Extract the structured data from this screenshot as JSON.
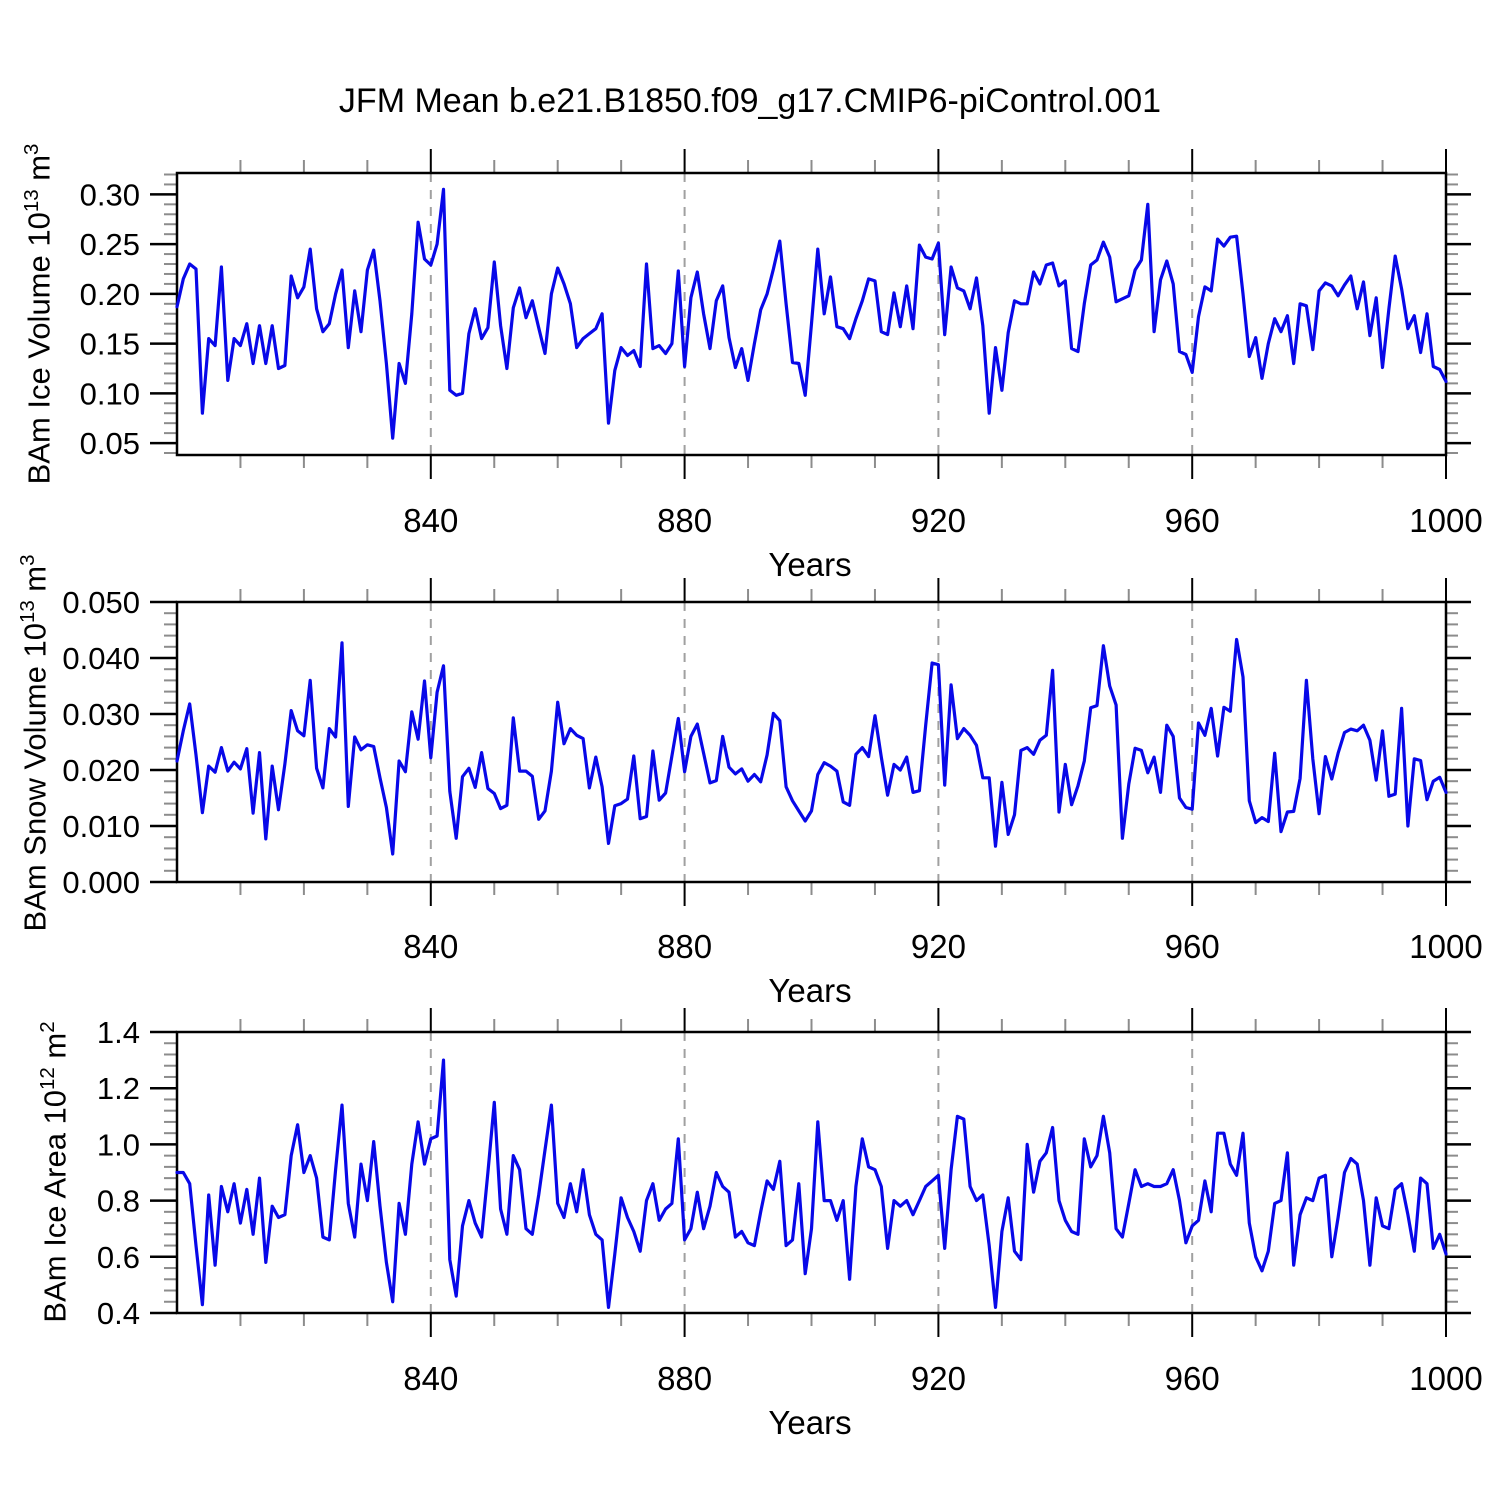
{
  "title": "JFM Mean b.e21.B1850.f09_g17.CMIP6-piControl.001",
  "colors": {
    "line": "#0808E8",
    "frame": "#000000",
    "major_tick": "#000000",
    "minor_tick": "#8c8c8c",
    "gridline": "#a0a0a0",
    "text": "#000000"
  },
  "x_axis": {
    "label": "Years",
    "major_ticks": [
      840,
      880,
      920,
      960,
      1000
    ],
    "major_tick_labels": [
      "840",
      "880",
      "920",
      "960",
      "1000"
    ],
    "minor_step": 10,
    "range": [
      800,
      1000
    ]
  },
  "chart_data": [
    {
      "id": "ice-volume",
      "type": "line",
      "title": "",
      "xlabel": "Years",
      "ylabel_text": "BAm Ice Volume 10^13 m^3",
      "ylabel": {
        "base": "BAm Ice Volume 10",
        "sup": "13",
        "unit": " m",
        "unit_sup": "3"
      },
      "xlim": [
        800,
        1000
      ],
      "ylim": [
        0.038,
        0.3215
      ],
      "yticks": [
        0.05,
        0.1,
        0.15,
        0.2,
        0.25,
        0.3
      ],
      "ytick_labels": [
        "0.05",
        "0.10",
        "0.15",
        "0.20",
        "0.25",
        "0.30"
      ],
      "y_minor_step": 0.01,
      "grid": "dashed-vertical",
      "legend": "none",
      "x_start": 800,
      "x_step": 1,
      "values": [
        0.187,
        0.215,
        0.23,
        0.225,
        0.08,
        0.155,
        0.148,
        0.227,
        0.113,
        0.155,
        0.148,
        0.17,
        0.13,
        0.168,
        0.13,
        0.168,
        0.125,
        0.128,
        0.218,
        0.196,
        0.207,
        0.245,
        0.185,
        0.162,
        0.17,
        0.2,
        0.224,
        0.146,
        0.203,
        0.162,
        0.224,
        0.244,
        0.193,
        0.13,
        0.055,
        0.13,
        0.11,
        0.18,
        0.272,
        0.235,
        0.229,
        0.25,
        0.305,
        0.103,
        0.098,
        0.1,
        0.16,
        0.185,
        0.155,
        0.166,
        0.232,
        0.168,
        0.125,
        0.186,
        0.206,
        0.176,
        0.193,
        0.166,
        0.14,
        0.2,
        0.226,
        0.21,
        0.19,
        0.146,
        0.155,
        0.16,
        0.165,
        0.18,
        0.07,
        0.123,
        0.146,
        0.138,
        0.143,
        0.127,
        0.23,
        0.145,
        0.148,
        0.14,
        0.15,
        0.223,
        0.127,
        0.196,
        0.222,
        0.18,
        0.145,
        0.193,
        0.208,
        0.156,
        0.126,
        0.145,
        0.113,
        0.15,
        0.184,
        0.2,
        0.225,
        0.253,
        0.19,
        0.131,
        0.13,
        0.098,
        0.17,
        0.245,
        0.18,
        0.217,
        0.167,
        0.165,
        0.155,
        0.175,
        0.193,
        0.215,
        0.213,
        0.162,
        0.159,
        0.201,
        0.167,
        0.208,
        0.165,
        0.249,
        0.237,
        0.235,
        0.251,
        0.159,
        0.227,
        0.206,
        0.203,
        0.185,
        0.216,
        0.168,
        0.08,
        0.146,
        0.103,
        0.161,
        0.193,
        0.19,
        0.19,
        0.222,
        0.21,
        0.229,
        0.231,
        0.208,
        0.213,
        0.145,
        0.142,
        0.19,
        0.229,
        0.234,
        0.252,
        0.237,
        0.192,
        0.195,
        0.198,
        0.224,
        0.234,
        0.29,
        0.162,
        0.214,
        0.233,
        0.21,
        0.142,
        0.139,
        0.121,
        0.177,
        0.207,
        0.203,
        0.255,
        0.248,
        0.257,
        0.258,
        0.2,
        0.137,
        0.156,
        0.115,
        0.15,
        0.175,
        0.162,
        0.178,
        0.13,
        0.19,
        0.188,
        0.144,
        0.203,
        0.211,
        0.208,
        0.198,
        0.209,
        0.218,
        0.185,
        0.212,
        0.158,
        0.196,
        0.126,
        0.185,
        0.238,
        0.205,
        0.165,
        0.178,
        0.141,
        0.18,
        0.127,
        0.124,
        0.112
      ]
    },
    {
      "id": "snow-volume",
      "type": "line",
      "title": "",
      "xlabel": "Years",
      "ylabel_text": "BAm Snow Volume 10^13 m^3",
      "ylabel": {
        "base": "BAm Snow Volume 10",
        "sup": "13",
        "unit": " m",
        "unit_sup": "3"
      },
      "xlim": [
        800,
        1000
      ],
      "ylim": [
        0.0,
        0.05
      ],
      "yticks": [
        0.0,
        0.01,
        0.02,
        0.03,
        0.04,
        0.05
      ],
      "ytick_labels": [
        "0.000",
        "0.010",
        "0.020",
        "0.030",
        "0.040",
        "0.050"
      ],
      "y_minor_step": 0.002,
      "grid": "dashed-vertical",
      "legend": "none",
      "x_start": 800,
      "x_step": 1,
      "values": [
        0.0216,
        0.027,
        0.0318,
        0.0227,
        0.0124,
        0.0207,
        0.0196,
        0.024,
        0.0198,
        0.0214,
        0.0202,
        0.0238,
        0.0123,
        0.0231,
        0.0077,
        0.0207,
        0.0129,
        0.0211,
        0.0306,
        0.027,
        0.0261,
        0.036,
        0.0203,
        0.0168,
        0.0274,
        0.0259,
        0.0427,
        0.0135,
        0.0259,
        0.0236,
        0.0245,
        0.0242,
        0.0186,
        0.0133,
        0.005,
        0.0216,
        0.0197,
        0.0304,
        0.0255,
        0.0359,
        0.0222,
        0.0339,
        0.0386,
        0.0162,
        0.0078,
        0.0188,
        0.0203,
        0.0169,
        0.0231,
        0.0167,
        0.0158,
        0.0131,
        0.0137,
        0.0293,
        0.0198,
        0.0198,
        0.0189,
        0.0112,
        0.0127,
        0.0198,
        0.0321,
        0.0247,
        0.0274,
        0.0262,
        0.0256,
        0.0168,
        0.0223,
        0.017,
        0.0069,
        0.0136,
        0.014,
        0.0148,
        0.0225,
        0.0113,
        0.0117,
        0.0234,
        0.0146,
        0.0159,
        0.0225,
        0.0292,
        0.0197,
        0.026,
        0.0282,
        0.023,
        0.0177,
        0.0181,
        0.026,
        0.0205,
        0.0193,
        0.0202,
        0.018,
        0.0192,
        0.0179,
        0.0227,
        0.0301,
        0.0288,
        0.017,
        0.0145,
        0.0127,
        0.0109,
        0.0127,
        0.0192,
        0.0213,
        0.0207,
        0.0198,
        0.0143,
        0.0137,
        0.0228,
        0.024,
        0.0224,
        0.0297,
        0.0223,
        0.0155,
        0.021,
        0.02,
        0.0223,
        0.016,
        0.0163,
        0.028,
        0.0391,
        0.0388,
        0.0173,
        0.0352,
        0.0256,
        0.0274,
        0.0262,
        0.0244,
        0.0186,
        0.0186,
        0.0064,
        0.0178,
        0.0085,
        0.012,
        0.0235,
        0.024,
        0.0228,
        0.0253,
        0.0262,
        0.0378,
        0.0125,
        0.021,
        0.0138,
        0.0172,
        0.0216,
        0.0311,
        0.0315,
        0.0422,
        0.035,
        0.0316,
        0.0078,
        0.0175,
        0.0239,
        0.0235,
        0.0195,
        0.0223,
        0.016,
        0.028,
        0.026,
        0.015,
        0.0133,
        0.013,
        0.0284,
        0.0262,
        0.031,
        0.0225,
        0.0312,
        0.0305,
        0.0433,
        0.0366,
        0.0145,
        0.0106,
        0.0115,
        0.0108,
        0.023,
        0.009,
        0.0125,
        0.0126,
        0.0185,
        0.036,
        0.022,
        0.0122,
        0.0224,
        0.0184,
        0.023,
        0.0267,
        0.0273,
        0.027,
        0.028,
        0.0253,
        0.0182,
        0.027,
        0.0153,
        0.0157,
        0.031,
        0.01,
        0.022,
        0.0217,
        0.0147,
        0.018,
        0.0187,
        0.016
      ]
    },
    {
      "id": "ice-area",
      "type": "line",
      "title": "",
      "xlabel": "Years",
      "ylabel_text": "BAm Ice Area 10^12 m^2",
      "ylabel": {
        "base": "BAm Ice Area 10",
        "sup": "12",
        "unit": " m",
        "unit_sup": "2"
      },
      "xlim": [
        800,
        1000
      ],
      "ylim": [
        0.4,
        1.4
      ],
      "yticks": [
        0.4,
        0.6,
        0.8,
        1.0,
        1.2,
        1.4
      ],
      "ytick_labels": [
        "0.4",
        "0.6",
        "0.8",
        "1.0",
        "1.2",
        "1.4"
      ],
      "y_minor_step": 0.04,
      "grid": "dashed-vertical",
      "legend": "none",
      "x_start": 800,
      "x_step": 1,
      "values": [
        0.9,
        0.9,
        0.86,
        0.64,
        0.43,
        0.82,
        0.57,
        0.85,
        0.76,
        0.86,
        0.72,
        0.84,
        0.68,
        0.88,
        0.58,
        0.78,
        0.74,
        0.75,
        0.96,
        1.07,
        0.9,
        0.96,
        0.88,
        0.67,
        0.66,
        0.91,
        1.14,
        0.79,
        0.67,
        0.93,
        0.8,
        1.01,
        0.78,
        0.58,
        0.44,
        0.79,
        0.68,
        0.93,
        1.08,
        0.93,
        1.02,
        1.03,
        1.3,
        0.59,
        0.46,
        0.71,
        0.8,
        0.72,
        0.67,
        0.9,
        1.15,
        0.77,
        0.68,
        0.96,
        0.91,
        0.7,
        0.68,
        0.82,
        0.98,
        1.14,
        0.79,
        0.74,
        0.86,
        0.76,
        0.91,
        0.75,
        0.68,
        0.66,
        0.42,
        0.61,
        0.81,
        0.74,
        0.69,
        0.62,
        0.8,
        0.86,
        0.73,
        0.77,
        0.79,
        1.02,
        0.66,
        0.7,
        0.83,
        0.7,
        0.78,
        0.9,
        0.85,
        0.83,
        0.67,
        0.69,
        0.65,
        0.64,
        0.76,
        0.87,
        0.84,
        0.94,
        0.64,
        0.66,
        0.86,
        0.54,
        0.7,
        1.08,
        0.8,
        0.8,
        0.73,
        0.8,
        0.52,
        0.85,
        1.02,
        0.92,
        0.91,
        0.85,
        0.63,
        0.8,
        0.78,
        0.8,
        0.75,
        0.8,
        0.85,
        0.87,
        0.89,
        0.63,
        0.91,
        1.1,
        1.09,
        0.85,
        0.8,
        0.82,
        0.64,
        0.42,
        0.69,
        0.81,
        0.62,
        0.59,
        1.0,
        0.83,
        0.94,
        0.97,
        1.06,
        0.8,
        0.73,
        0.69,
        0.68,
        1.02,
        0.92,
        0.96,
        1.1,
        0.97,
        0.7,
        0.67,
        0.79,
        0.91,
        0.85,
        0.86,
        0.85,
        0.85,
        0.86,
        0.91,
        0.8,
        0.65,
        0.71,
        0.73,
        0.87,
        0.76,
        1.04,
        1.04,
        0.93,
        0.89,
        1.04,
        0.72,
        0.6,
        0.55,
        0.62,
        0.79,
        0.8,
        0.97,
        0.57,
        0.75,
        0.81,
        0.8,
        0.88,
        0.89,
        0.6,
        0.74,
        0.9,
        0.95,
        0.93,
        0.8,
        0.57,
        0.81,
        0.71,
        0.7,
        0.84,
        0.86,
        0.75,
        0.62,
        0.88,
        0.86,
        0.63,
        0.68,
        0.61
      ]
    }
  ]
}
